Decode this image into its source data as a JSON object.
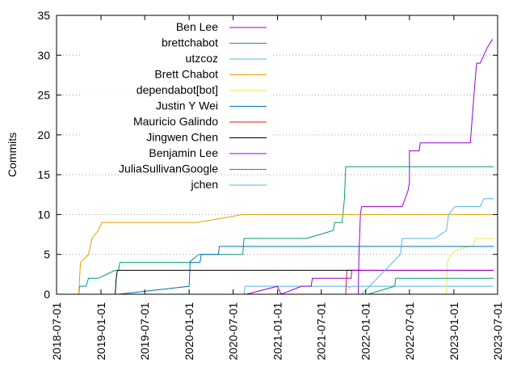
{
  "chart_data": {
    "type": "line",
    "ylabel": "Commits",
    "ylim": [
      0,
      35
    ],
    "xlim": [
      "2018-07-01",
      "2023-07-01"
    ],
    "yticks": [
      0,
      5,
      10,
      15,
      20,
      25,
      30,
      35
    ],
    "xticks": [
      "2018-07-01",
      "2019-01-01",
      "2019-07-01",
      "2020-01-01",
      "2020-07-01",
      "2021-01-01",
      "2021-07-01",
      "2022-01-01",
      "2022-07-01",
      "2023-01-01",
      "2023-07-01"
    ],
    "grid": "horizontal-dotted",
    "legend_position": "top-left",
    "series": [
      {
        "name": "Ben Lee",
        "color": "#9400d3",
        "points": [
          [
            "2021-12-01",
            0
          ],
          [
            "2021-12-04",
            5
          ],
          [
            "2021-12-10",
            10
          ],
          [
            "2021-12-15",
            11
          ],
          [
            "2022-06-01",
            11
          ],
          [
            "2022-06-25",
            13
          ],
          [
            "2022-07-01",
            14
          ],
          [
            "2022-07-01",
            18
          ],
          [
            "2022-08-10",
            18
          ],
          [
            "2022-08-15",
            19
          ],
          [
            "2023-03-10",
            19
          ],
          [
            "2023-03-25",
            25
          ],
          [
            "2023-04-05",
            29
          ],
          [
            "2023-04-20",
            29
          ],
          [
            "2023-05-20",
            31
          ],
          [
            "2023-06-10",
            32
          ]
        ]
      },
      {
        "name": "brettchabot",
        "color": "#009e73",
        "points": [
          [
            "2018-10-01",
            0
          ],
          [
            "2018-10-05",
            1
          ],
          [
            "2018-11-01",
            1
          ],
          [
            "2018-11-10",
            2
          ],
          [
            "2018-12-20",
            2
          ],
          [
            "2019-03-01",
            3
          ],
          [
            "2019-03-15",
            3
          ],
          [
            "2019-03-20",
            4
          ],
          [
            "2020-01-01",
            4
          ],
          [
            "2020-02-10",
            5
          ],
          [
            "2020-08-10",
            5
          ],
          [
            "2020-08-15",
            7
          ],
          [
            "2021-05-01",
            7
          ],
          [
            "2021-08-20",
            8
          ],
          [
            "2021-08-25",
            9
          ],
          [
            "2021-09-25",
            9
          ],
          [
            "2021-10-05",
            12
          ],
          [
            "2021-10-10",
            16
          ],
          [
            "2023-06-15",
            16
          ]
        ]
      },
      {
        "name": "utzcoz",
        "color": "#56b4e9",
        "points": [
          [
            "2020-08-15",
            0
          ],
          [
            "2020-08-20",
            1
          ],
          [
            "2021-10-20",
            1
          ],
          [
            "2021-10-25",
            0.8
          ],
          [
            "2021-11-01",
            1
          ],
          [
            "2023-06-15",
            1
          ]
        ]
      },
      {
        "name": "Brett Chabot",
        "color": "#e69f00",
        "points": [
          [
            "2018-10-01",
            0
          ],
          [
            "2018-10-08",
            4
          ],
          [
            "2018-11-10",
            5
          ],
          [
            "2018-11-25",
            7
          ],
          [
            "2018-12-20",
            8
          ],
          [
            "2019-01-05",
            9
          ],
          [
            "2020-02-01",
            9
          ],
          [
            "2020-08-10",
            10
          ],
          [
            "2023-06-15",
            10
          ]
        ]
      },
      {
        "name": "dependabot[bot]",
        "color": "#f0e442",
        "points": [
          [
            "2022-12-01",
            0
          ],
          [
            "2022-12-05",
            4
          ],
          [
            "2022-12-20",
            5
          ],
          [
            "2023-01-10",
            5.5
          ],
          [
            "2023-03-01",
            6
          ],
          [
            "2023-03-20",
            6
          ],
          [
            "2023-04-01",
            7
          ],
          [
            "2023-06-15",
            7
          ]
        ]
      },
      {
        "name": "Justin Y Wei",
        "color": "#0072b2",
        "points": [
          [
            "2019-03-15",
            0
          ],
          [
            "2020-01-01",
            1
          ],
          [
            "2020-01-05",
            4
          ],
          [
            "2020-02-15",
            4
          ],
          [
            "2020-02-20",
            5
          ],
          [
            "2020-05-01",
            5
          ],
          [
            "2020-05-05",
            6
          ],
          [
            "2021-11-20",
            6
          ],
          [
            "2021-11-25",
            6
          ],
          [
            "2023-06-15",
            6
          ]
        ]
      },
      {
        "name": "Mauricio Galindo",
        "color": "#e51e10",
        "points": [
          [
            "2021-10-10",
            0
          ],
          [
            "2021-10-15",
            3
          ],
          [
            "2023-06-15",
            3
          ]
        ]
      },
      {
        "name": "Jingwen Chen",
        "color": "#000000",
        "points": [
          [
            "2019-03-01",
            0
          ],
          [
            "2019-03-05",
            2
          ],
          [
            "2019-03-10",
            3
          ],
          [
            "2021-12-15",
            3
          ]
        ]
      },
      {
        "name": "Benjamin Lee",
        "color": "#9400d3",
        "points": [
          [
            "2020-08-25",
            0
          ],
          [
            "2021-01-01",
            1
          ],
          [
            "2021-01-15",
            0
          ],
          [
            "2021-04-10",
            1
          ],
          [
            "2021-05-20",
            1
          ],
          [
            "2021-05-25",
            2
          ],
          [
            "2021-11-01",
            2
          ],
          [
            "2021-11-05",
            3
          ],
          [
            "2023-06-15",
            3
          ]
        ]
      },
      {
        "name": "JuliaSullivanGoogle",
        "color": "#009e73",
        "points": [
          [
            "2022-01-10",
            0
          ],
          [
            "2022-05-01",
            1
          ],
          [
            "2022-05-05",
            2
          ],
          [
            "2023-06-15",
            2
          ]
        ]
      },
      {
        "name": "jchen",
        "color": "#56b4e9",
        "points": [
          [
            "2021-12-15",
            0
          ],
          [
            "2022-05-25",
            5
          ],
          [
            "2022-06-01",
            7
          ],
          [
            "2022-10-15",
            7
          ],
          [
            "2022-12-01",
            8
          ],
          [
            "2022-12-10",
            10
          ],
          [
            "2023-01-05",
            11
          ],
          [
            "2023-04-20",
            11
          ],
          [
            "2023-05-05",
            12
          ],
          [
            "2023-06-15",
            12
          ]
        ]
      }
    ]
  }
}
